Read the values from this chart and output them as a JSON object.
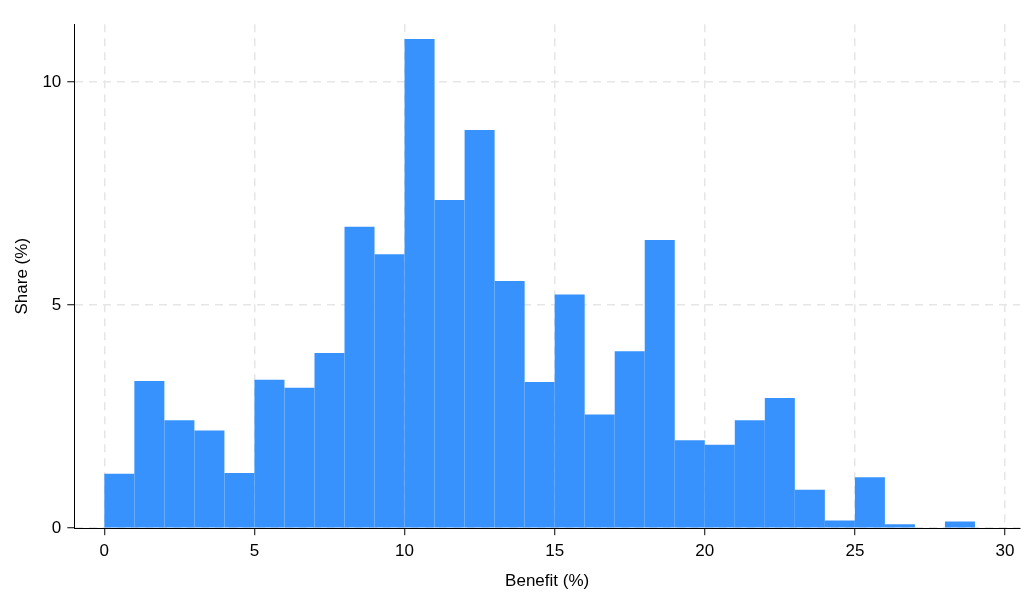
{
  "chart_data": {
    "type": "histogram",
    "xlabel": "Benefit (%)",
    "ylabel": "Share (%)",
    "bins": [
      0,
      1,
      2,
      3,
      4,
      5,
      6,
      7,
      8,
      9,
      10,
      11,
      12,
      13,
      14,
      15,
      16,
      17,
      18,
      19,
      20,
      21,
      22,
      23,
      24,
      25,
      26,
      27,
      28,
      29
    ],
    "values": [
      1.22,
      3.3,
      2.42,
      2.19,
      1.24,
      3.33,
      3.15,
      3.93,
      6.76,
      6.14,
      10.97,
      7.36,
      8.93,
      5.54,
      3.28,
      5.24,
      2.55,
      3.97,
      6.46,
      1.97,
      1.87,
      2.42,
      2.92,
      0.86,
      0.17,
      1.14,
      0.09,
      0,
      0.15
    ],
    "color": "#3792fd",
    "xlim": [
      -1,
      30.5
    ],
    "xticks": [
      0,
      5,
      10,
      15,
      20,
      25,
      30
    ],
    "ylim": [
      0,
      11.3
    ],
    "yticks": [
      0,
      5,
      10
    ],
    "grid": true,
    "legend": false
  }
}
